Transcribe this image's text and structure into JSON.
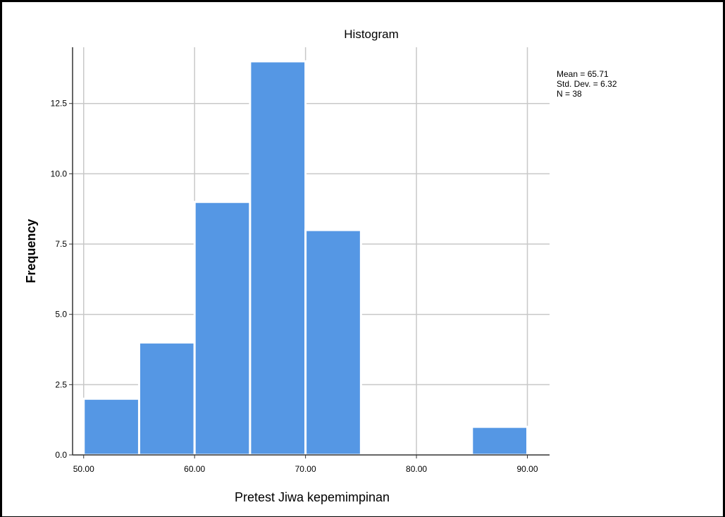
{
  "chart_data": {
    "type": "bar",
    "title": "Histogram",
    "xlabel": "Pretest Jiwa kepemimpinan",
    "ylabel": "Frequency",
    "bins": [
      {
        "from": 50,
        "to": 55,
        "value": 2
      },
      {
        "from": 55,
        "to": 60,
        "value": 4
      },
      {
        "from": 60,
        "to": 65,
        "value": 9
      },
      {
        "from": 65,
        "to": 70,
        "value": 14
      },
      {
        "from": 70,
        "to": 75,
        "value": 8
      },
      {
        "from": 85,
        "to": 90,
        "value": 1
      }
    ],
    "xlim": [
      49,
      92
    ],
    "ylim": [
      0,
      14.5
    ],
    "x_ticks": [
      50,
      60,
      70,
      80,
      90
    ],
    "x_tick_labels": [
      "50.00",
      "60.00",
      "70.00",
      "80.00",
      "90.00"
    ],
    "y_ticks": [
      0,
      2.5,
      5,
      7.5,
      10,
      12.5
    ],
    "y_tick_labels": [
      "0.0",
      "2.5",
      "5.0",
      "7.5",
      "10.0",
      "12.5"
    ],
    "grid": true,
    "bar_color": "#5597e4",
    "stats": {
      "mean": "Mean = 65.71",
      "std_dev": "Std. Dev. = 6.32",
      "n": "N = 38"
    }
  }
}
